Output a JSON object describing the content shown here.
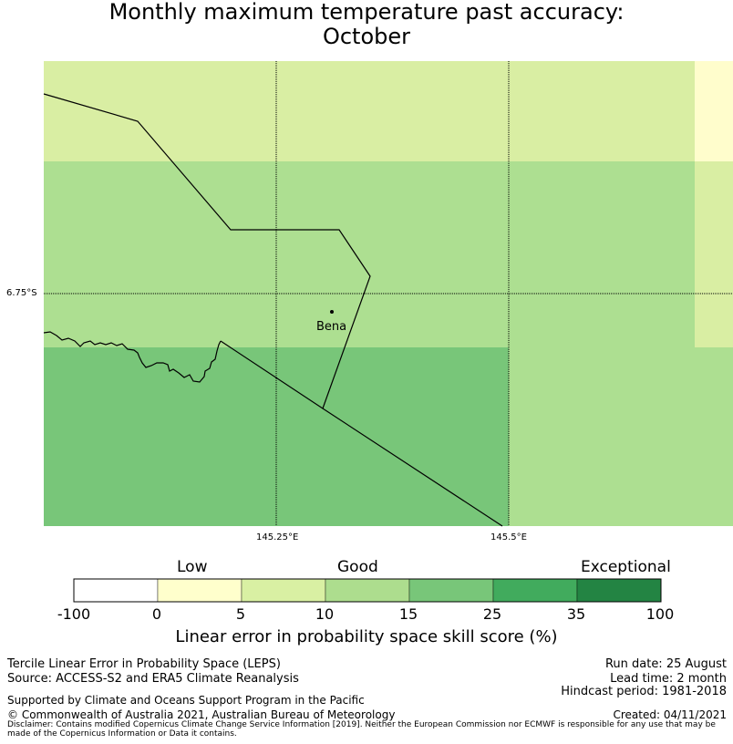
{
  "title": {
    "line1": "Monthly maximum temperature past accuracy:",
    "line2": "October"
  },
  "map": {
    "lat_label": "6.75°S",
    "lon_labels": [
      "145.25°E",
      "145.5°E"
    ],
    "place": {
      "name": "Bena"
    },
    "colors": {
      "light_yellow": "#fffdcc",
      "yellow_green": "#d9eea3",
      "light_green": "#addf91",
      "green": "#78c679",
      "border": "#000000"
    }
  },
  "colorbar": {
    "category_labels": [
      "Low",
      "Good",
      "Exceptional"
    ],
    "ticks": [
      "-100",
      "0",
      "5",
      "10",
      "15",
      "25",
      "35",
      "100"
    ],
    "bins": [
      {
        "from": -100,
        "to": 0,
        "color": "#ffffff"
      },
      {
        "from": 0,
        "to": 5,
        "color": "#ffffcc"
      },
      {
        "from": 5,
        "to": 10,
        "color": "#d9f0a3"
      },
      {
        "from": 10,
        "to": 15,
        "color": "#addd8e"
      },
      {
        "from": 15,
        "to": 25,
        "color": "#78c679"
      },
      {
        "from": 25,
        "to": 35,
        "color": "#41ab5d"
      },
      {
        "from": 35,
        "to": 100,
        "color": "#238443"
      }
    ],
    "label": "Linear error in probability space skill score (%)"
  },
  "footer": {
    "method": "Tercile Linear Error in Probability Space (LEPS)",
    "source": "Source: ACCESS-S2 and ERA5 Climate Reanalysis",
    "run_date": "Run date: 25 August",
    "lead_time": "Lead time: 2 month",
    "hindcast": "Hindcast period: 1981-2018",
    "support": "Supported by Climate and Oceans Support Program in the Pacific",
    "copyright": "© Commonwealth of Australia 2021, Australian Bureau of Meteorology",
    "created": "Created: 04/11/2021",
    "disclaimer": "Disclaimer: Contains modified Copernicus Climate Change Service Information [2019]. Neither the European Commission nor ECMWF is responsible for any use that may be made of the Copernicus Information or Data it contains."
  }
}
